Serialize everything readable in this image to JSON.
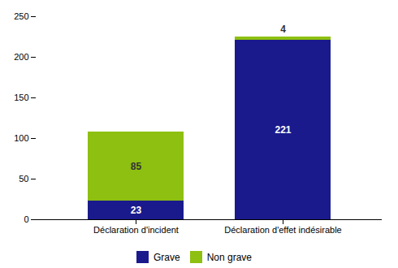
{
  "chart_data": {
    "type": "bar",
    "stacked": true,
    "categories": [
      "Déclaration d'incident",
      "Déclaration d'effet indésirable"
    ],
    "series": [
      {
        "name": "Grave",
        "color": "#1A1A8C",
        "values": [
          23,
          221
        ]
      },
      {
        "name": "Non grave",
        "color": "#8DC010",
        "values": [
          85,
          4
        ]
      }
    ],
    "ylim": [
      0,
      250
    ],
    "yticks": [
      0,
      50,
      100,
      150,
      200,
      250
    ],
    "data_labels": true,
    "grid": false,
    "legend": "bottom"
  }
}
